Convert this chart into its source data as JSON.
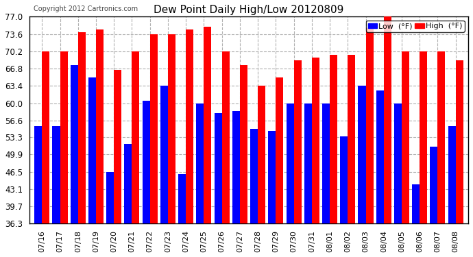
{
  "title": "Dew Point Daily High/Low 20120809",
  "copyright": "Copyright 2012 Cartronics.com",
  "dates": [
    "07/16",
    "07/17",
    "07/18",
    "07/19",
    "07/20",
    "07/21",
    "07/22",
    "07/23",
    "07/24",
    "07/25",
    "07/26",
    "07/27",
    "07/28",
    "07/29",
    "07/30",
    "07/31",
    "08/01",
    "08/02",
    "08/03",
    "08/04",
    "08/05",
    "08/06",
    "08/07",
    "08/08"
  ],
  "high": [
    70.2,
    70.2,
    74.0,
    74.5,
    66.5,
    70.2,
    73.6,
    73.6,
    74.5,
    75.0,
    70.2,
    67.5,
    63.4,
    65.0,
    68.5,
    69.0,
    69.5,
    69.5,
    74.8,
    77.0,
    70.2,
    70.2,
    70.2,
    68.5
  ],
  "low": [
    55.5,
    55.5,
    67.5,
    65.0,
    46.5,
    52.0,
    60.5,
    63.5,
    46.0,
    60.0,
    58.0,
    58.5,
    55.0,
    54.5,
    60.0,
    60.0,
    60.0,
    53.5,
    63.5,
    62.5,
    60.0,
    44.0,
    51.5,
    55.5
  ],
  "ylim_min": 36.3,
  "ylim_max": 77.0,
  "yticks": [
    36.3,
    39.7,
    43.1,
    46.5,
    49.9,
    53.3,
    56.6,
    60.0,
    63.4,
    66.8,
    70.2,
    73.6,
    77.0
  ],
  "bar_width": 0.42,
  "high_color": "#ff0000",
  "low_color": "#0000ff",
  "bg_color": "#ffffff",
  "grid_color": "#b0b0b0",
  "legend_high_label": "High  (°F)",
  "legend_low_label": "Low  (°F)"
}
